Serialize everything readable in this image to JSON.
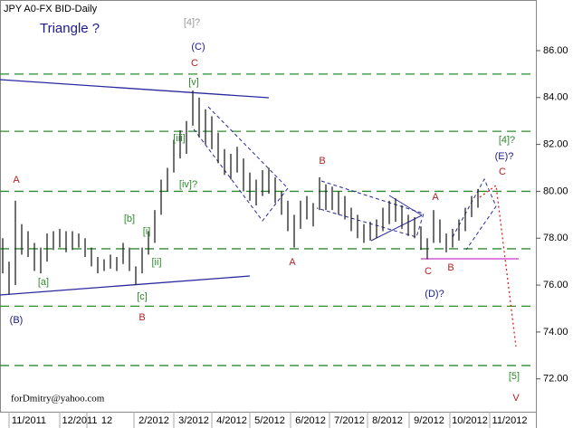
{
  "chart_data": {
    "type": "ohlc",
    "title": "JPY A0-FX BID-Daily",
    "subtitle": "Triangle ?",
    "footer": "forDmitry@yahoo.com",
    "x_labels": [
      "11/2011",
      "12/2011",
      "12",
      "2/2012",
      "3/2012",
      "4/2012",
      "5/2012",
      "6/2012",
      "7/2012",
      "8/2012",
      "9/2012",
      "10/2012",
      "11/2012"
    ],
    "ylim": [
      70.6,
      88.16
    ],
    "yticks": [
      {
        "value": 72,
        "label": "72.00"
      },
      {
        "value": 74,
        "label": "74.00"
      },
      {
        "value": 76,
        "label": "76.00"
      },
      {
        "value": 78,
        "label": "78.00"
      },
      {
        "value": 80,
        "label": "80.00"
      },
      {
        "value": 82,
        "label": "82.00"
      },
      {
        "value": 84,
        "label": "84.00"
      },
      {
        "value": 86,
        "label": "86.00"
      }
    ],
    "levels": [
      85.0,
      82.56,
      80.0,
      77.55,
      75.1,
      72.57
    ],
    "level_color": "#2e8b2e",
    "bar_color": "#222222",
    "high": [
      78,
      77,
      79.6,
      78.6,
      78.3,
      77.8,
      77.6,
      78.2,
      78.3,
      78.4,
      78.3,
      78.3,
      78.2,
      78,
      77.6,
      77.2,
      77.1,
      77.3,
      77.2,
      77.8,
      77.6,
      76.8,
      77.6,
      78.3,
      79.2,
      80.5,
      81,
      82.2,
      82.6,
      83,
      84.3,
      84,
      83.5,
      83.2,
      82.5,
      81.8,
      81.6,
      81.9,
      81.4,
      80.8,
      80.5,
      80.9,
      81,
      80.6,
      80,
      79.6,
      79,
      79.6,
      79.8,
      79.5,
      80.6,
      80.3,
      80.2,
      80,
      79.8,
      79.3,
      79,
      78.6,
      78.7,
      78.8,
      79.3,
      79.6,
      79.7,
      79.4,
      79,
      78.9,
      78.5,
      78,
      79.2,
      78.8,
      78.2,
      78.4,
      78.8,
      79.3,
      79.8,
      80.1
    ],
    "low": [
      76.5,
      75.6,
      76,
      77.3,
      77.2,
      76.6,
      76.5,
      77,
      77.5,
      77.6,
      77.4,
      77.5,
      77.6,
      77.2,
      76.8,
      76.5,
      76.6,
      76.7,
      76.6,
      76.9,
      76.6,
      76,
      76.5,
      77.3,
      77.8,
      79,
      80,
      80.8,
      81.4,
      81.6,
      82.8,
      82.3,
      82,
      81.8,
      81.2,
      80.7,
      80.5,
      80.8,
      80,
      79.6,
      79.4,
      79.8,
      79.9,
      79.5,
      79,
      78.3,
      77.6,
      78.4,
      78.8,
      78.5,
      79.2,
      79.2,
      79.2,
      79,
      78.8,
      78.3,
      78,
      77.8,
      77.9,
      78,
      78.3,
      78.6,
      78.7,
      78.4,
      78.1,
      78,
      77.5,
      77.1,
      77.8,
      77.8,
      77.4,
      77.6,
      77.9,
      78.3,
      78.9,
      79.3
    ],
    "annotations": [
      {
        "text": "[4]?",
        "color": "#999999"
      },
      {
        "text": "(C)",
        "color": "#1a1a8c"
      },
      {
        "text": "C",
        "color": "#b22222"
      },
      {
        "text": "[v]",
        "color": "#2e8b2e"
      },
      {
        "text": "[iii]",
        "color": "#2e8b2e"
      },
      {
        "text": "[iv]?",
        "color": "#2e8b2e"
      },
      {
        "text": "A",
        "color": "#b22222"
      },
      {
        "text": "[b]",
        "color": "#2e8b2e"
      },
      {
        "text": "[i]",
        "color": "#2e8b2e"
      },
      {
        "text": "[a]",
        "color": "#2e8b2e"
      },
      {
        "text": "[ii]",
        "color": "#2e8b2e"
      },
      {
        "text": "[c]",
        "color": "#2e8b2e"
      },
      {
        "text": "B",
        "color": "#b22222"
      },
      {
        "text": "(B)",
        "color": "#1a1a8c"
      },
      {
        "text": "A",
        "color": "#b22222"
      },
      {
        "text": "B",
        "color": "#b22222"
      },
      {
        "text": "A",
        "color": "#b22222"
      },
      {
        "text": "C",
        "color": "#b22222"
      },
      {
        "text": "B",
        "color": "#b22222"
      },
      {
        "text": "(D)?",
        "color": "#1a1a8c"
      },
      {
        "text": "[4]?",
        "color": "#2e8b2e"
      },
      {
        "text": "(E)?",
        "color": "#1a1a8c"
      },
      {
        "text": "C",
        "color": "#b22222"
      },
      {
        "text": "[5]",
        "color": "#2e8b2e"
      },
      {
        "text": "V",
        "color": "#b22222"
      }
    ]
  }
}
